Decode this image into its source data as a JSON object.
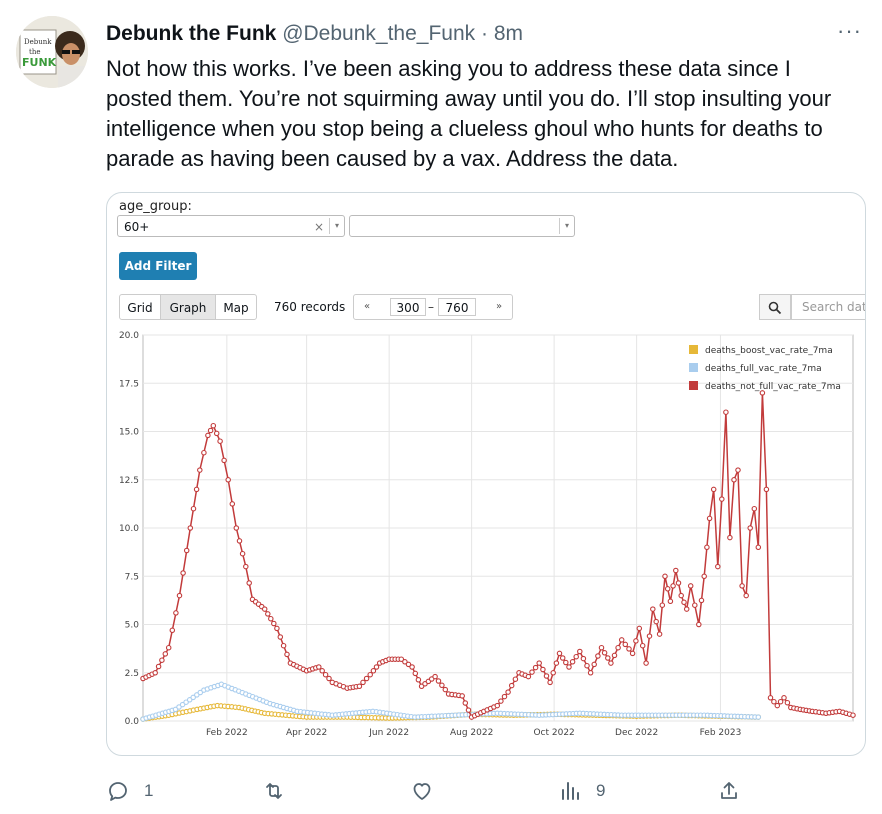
{
  "tweet": {
    "name": "Debunk the Funk",
    "handle": "@Debunk_the_Funk",
    "separator": "·",
    "time": "8m",
    "more_label": "···",
    "avatar_text": "Debunk the FUNK",
    "text": "Not how this works. I’ve been asking you to address these data since I posted them. You’re not squirming away until you do. I’ll stop insulting your intelligence when you stop being a clueless ghoul who hunts for deaths to parade as having been caused by a vax. Address the data."
  },
  "filter": {
    "label": "age_group:",
    "selected": "60+",
    "clear": "×",
    "arrow": "▾",
    "add_button": "Add Filter"
  },
  "toolbar": {
    "tabs": [
      {
        "label": "Grid"
      },
      {
        "label": "Graph",
        "active": true
      },
      {
        "label": "Map"
      }
    ],
    "records": "760 records",
    "pager": {
      "prev": "«",
      "start": "300",
      "dash": "–",
      "end": "760",
      "next": "»"
    },
    "search_placeholder": "Search data"
  },
  "actions": {
    "replies": "1",
    "views": "9"
  },
  "colors": {
    "boost": "#e6b838",
    "full": "#a9cdee",
    "not_full": "#c23b3b",
    "button": "#1f7fb2"
  },
  "chart_data": {
    "type": "line",
    "ylim": [
      0,
      20
    ],
    "yticks": [
      "0.0",
      "2.5",
      "5.0",
      "7.5",
      "10.0",
      "12.5",
      "15.0",
      "17.5",
      "20.0"
    ],
    "xticks": [
      "Feb 2022",
      "Apr 2022",
      "Jun 2022",
      "Aug 2022",
      "Oct 2022",
      "Dec 2022",
      "Feb 2023"
    ],
    "legend_position": "top-right",
    "series": [
      {
        "name": "deaths_boost_vac_rate_7ma",
        "color": "#e6b838",
        "points": [
          [
            "2021-12-01",
            0.1
          ],
          [
            "2021-12-20",
            0.3
          ],
          [
            "2022-01-10",
            0.6
          ],
          [
            "2022-01-25",
            0.8
          ],
          [
            "2022-02-10",
            0.7
          ],
          [
            "2022-03-01",
            0.4
          ],
          [
            "2022-04-01",
            0.2
          ],
          [
            "2022-05-01",
            0.2
          ],
          [
            "2022-06-01",
            0.15
          ],
          [
            "2022-07-01",
            0.2
          ],
          [
            "2022-08-01",
            0.35
          ],
          [
            "2022-09-01",
            0.3
          ],
          [
            "2022-10-01",
            0.35
          ],
          [
            "2022-11-01",
            0.3
          ],
          [
            "2022-12-01",
            0.25
          ],
          [
            "2023-01-01",
            0.3
          ],
          [
            "2023-03-01",
            0.2
          ]
        ]
      },
      {
        "name": "deaths_full_vac_rate_7ma",
        "color": "#a9cdee",
        "points": [
          [
            "2021-12-01",
            0.1
          ],
          [
            "2021-12-25",
            0.6
          ],
          [
            "2022-01-15",
            1.6
          ],
          [
            "2022-01-28",
            1.9
          ],
          [
            "2022-02-15",
            1.4
          ],
          [
            "2022-03-05",
            0.9
          ],
          [
            "2022-03-25",
            0.5
          ],
          [
            "2022-04-20",
            0.3
          ],
          [
            "2022-05-20",
            0.5
          ],
          [
            "2022-06-20",
            0.2
          ],
          [
            "2022-07-20",
            0.3
          ],
          [
            "2022-08-20",
            0.4
          ],
          [
            "2022-09-20",
            0.3
          ],
          [
            "2022-10-20",
            0.4
          ],
          [
            "2022-11-20",
            0.3
          ],
          [
            "2022-12-20",
            0.3
          ],
          [
            "2023-01-20",
            0.3
          ],
          [
            "2023-03-01",
            0.2
          ]
        ]
      },
      {
        "name": "deaths_not_full_vac_rate_7ma",
        "color": "#c23b3b",
        "points": [
          [
            "2021-12-01",
            2.2
          ],
          [
            "2021-12-10",
            2.5
          ],
          [
            "2021-12-20",
            3.8
          ],
          [
            "2021-12-28",
            6.5
          ],
          [
            "2022-01-05",
            10.0
          ],
          [
            "2022-01-12",
            13.0
          ],
          [
            "2022-01-18",
            14.8
          ],
          [
            "2022-01-22",
            15.3
          ],
          [
            "2022-01-27",
            14.5
          ],
          [
            "2022-02-02",
            12.5
          ],
          [
            "2022-02-08",
            10.0
          ],
          [
            "2022-02-15",
            8.0
          ],
          [
            "2022-02-20",
            6.3
          ],
          [
            "2022-03-01",
            5.8
          ],
          [
            "2022-03-10",
            4.8
          ],
          [
            "2022-03-20",
            3.0
          ],
          [
            "2022-04-01",
            2.6
          ],
          [
            "2022-04-10",
            2.8
          ],
          [
            "2022-04-20",
            2.0
          ],
          [
            "2022-05-01",
            1.7
          ],
          [
            "2022-05-10",
            1.8
          ],
          [
            "2022-05-18",
            2.4
          ],
          [
            "2022-05-25",
            3.0
          ],
          [
            "2022-06-01",
            3.2
          ],
          [
            "2022-06-10",
            3.2
          ],
          [
            "2022-06-18",
            2.8
          ],
          [
            "2022-06-25",
            1.8
          ],
          [
            "2022-07-05",
            2.3
          ],
          [
            "2022-07-15",
            1.4
          ],
          [
            "2022-07-25",
            1.3
          ],
          [
            "2022-08-01",
            0.2
          ],
          [
            "2022-08-10",
            0.5
          ],
          [
            "2022-08-20",
            0.8
          ],
          [
            "2022-08-28",
            1.5
          ],
          [
            "2022-09-05",
            2.5
          ],
          [
            "2022-09-12",
            2.3
          ],
          [
            "2022-09-20",
            3.0
          ],
          [
            "2022-09-28",
            2.0
          ],
          [
            "2022-10-05",
            3.5
          ],
          [
            "2022-10-12",
            2.8
          ],
          [
            "2022-10-20",
            3.6
          ],
          [
            "2022-10-28",
            2.5
          ],
          [
            "2022-11-05",
            3.8
          ],
          [
            "2022-11-12",
            3.0
          ],
          [
            "2022-11-20",
            4.2
          ],
          [
            "2022-11-28",
            3.5
          ],
          [
            "2022-12-03",
            4.8
          ],
          [
            "2022-12-08",
            3.0
          ],
          [
            "2022-12-13",
            5.8
          ],
          [
            "2022-12-18",
            4.5
          ],
          [
            "2022-12-22",
            7.5
          ],
          [
            "2022-12-26",
            6.2
          ],
          [
            "2022-12-30",
            7.8
          ],
          [
            "2023-01-03",
            6.5
          ],
          [
            "2023-01-07",
            5.8
          ],
          [
            "2023-01-10",
            7.0
          ],
          [
            "2023-01-13",
            6.0
          ],
          [
            "2023-01-16",
            5.0
          ],
          [
            "2023-01-20",
            7.5
          ],
          [
            "2023-01-24",
            10.5
          ],
          [
            "2023-01-27",
            12.0
          ],
          [
            "2023-01-30",
            8.0
          ],
          [
            "2023-02-02",
            11.5
          ],
          [
            "2023-02-05",
            16.0
          ],
          [
            "2023-02-08",
            9.5
          ],
          [
            "2023-02-11",
            12.5
          ],
          [
            "2023-02-14",
            13.0
          ],
          [
            "2023-02-17",
            7.0
          ],
          [
            "2023-02-20",
            6.5
          ],
          [
            "2023-02-23",
            10.0
          ],
          [
            "2023-02-26",
            11.0
          ],
          [
            "2023-03-01",
            9.0
          ],
          [
            "2023-03-04",
            17.0
          ],
          [
            "2023-03-07",
            12.0
          ],
          [
            "2023-03-10",
            1.2
          ],
          [
            "2023-03-15",
            0.8
          ],
          [
            "2023-03-20",
            1.2
          ],
          [
            "2023-03-25",
            0.7
          ],
          [
            "2023-04-01",
            0.6
          ],
          [
            "2023-04-10",
            0.5
          ],
          [
            "2023-04-20",
            0.4
          ],
          [
            "2023-04-30",
            0.5
          ],
          [
            "2023-05-10",
            0.3
          ]
        ]
      }
    ]
  }
}
